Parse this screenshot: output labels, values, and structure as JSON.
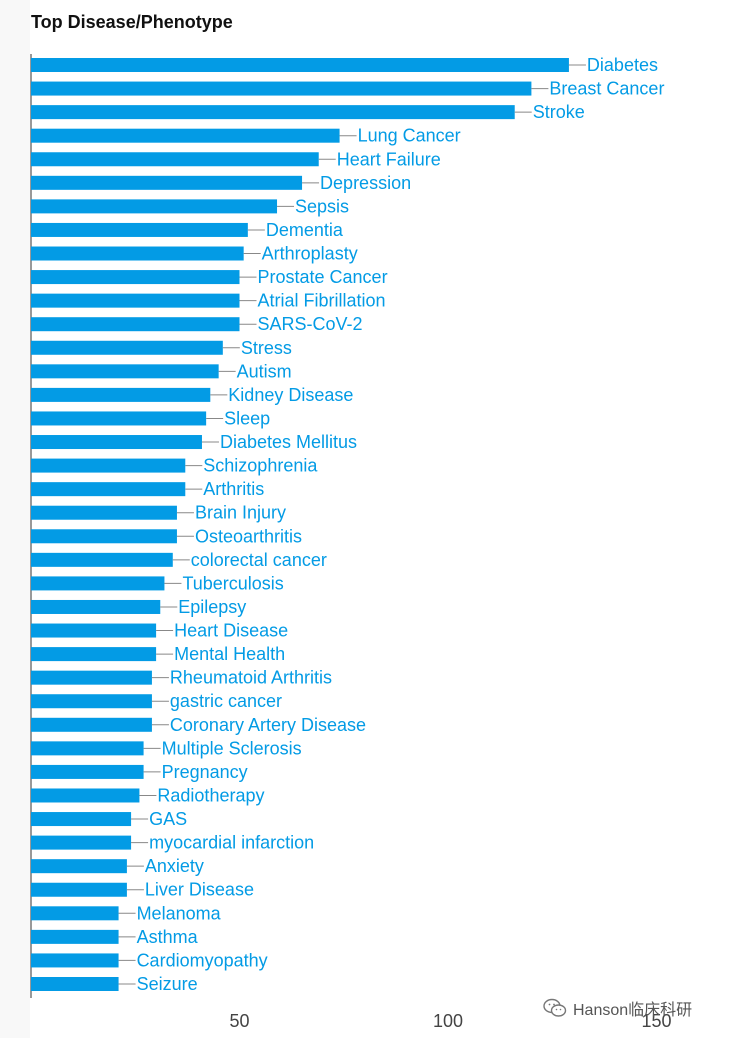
{
  "chart_data": {
    "type": "bar",
    "orientation": "horizontal",
    "title": "Top Disease/Phenotype",
    "xlabel": "",
    "ylabel": "",
    "xlim": [
      0,
      160
    ],
    "x_ticks": [
      50,
      100,
      150
    ],
    "grid": false,
    "bar_color": "#039be5",
    "label_color": "#039be5",
    "categories": [
      "Diabetes",
      "Breast Cancer",
      "Stroke",
      "Lung Cancer",
      "Heart Failure",
      "Depression",
      "Sepsis",
      "Dementia",
      "Arthroplasty",
      "Prostate Cancer",
      "Atrial Fibrillation",
      "SARS-CoV-2",
      "Stress",
      "Autism",
      "Kidney Disease",
      "Sleep",
      "Diabetes Mellitus",
      "Schizophrenia",
      "Arthritis",
      "Brain Injury",
      "Osteoarthritis",
      "colorectal cancer",
      "Tuberculosis",
      "Epilepsy",
      "Heart Disease",
      "Mental Health",
      "Rheumatoid Arthritis",
      "gastric cancer",
      "Coronary Artery Disease",
      "Multiple Sclerosis",
      "Pregnancy",
      "Radiotherapy",
      "GAS",
      "myocardial infarction",
      "Anxiety",
      "Liver Disease",
      "Melanoma",
      "Asthma",
      "Cardiomyopathy",
      "Seizure"
    ],
    "values": [
      129,
      120,
      116,
      74,
      69,
      65,
      59,
      52,
      51,
      50,
      50,
      50,
      46,
      45,
      43,
      42,
      41,
      37,
      37,
      35,
      35,
      34,
      32,
      31,
      30,
      30,
      29,
      29,
      29,
      27,
      27,
      26,
      24,
      24,
      23,
      23,
      21,
      21,
      21,
      21
    ]
  },
  "watermark": {
    "text": "Hanson临床科研",
    "icon": "wechat-icon"
  }
}
